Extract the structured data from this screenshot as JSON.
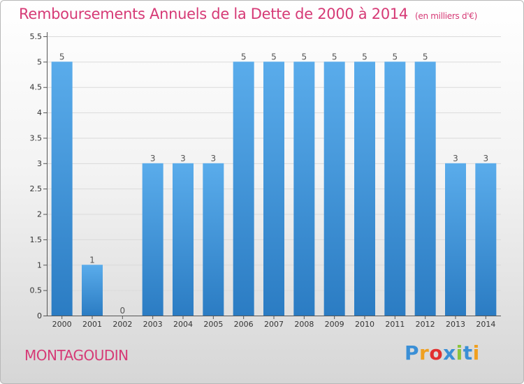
{
  "title": "Remboursements Annuels de la Dette de 2000 à 2014",
  "unit_note": "(en milliers d'€)",
  "place": "MONTAGOUDIN",
  "logo": {
    "text": "Proxiti",
    "letter_colors": [
      "#3a8fd6",
      "#f0a020",
      "#e23030",
      "#3a8fd6",
      "#8bc43c",
      "#3a8fd6",
      "#f0a020"
    ]
  },
  "colors": {
    "accent": "#d63a76",
    "bar_light": "#5aaceb",
    "bar_dark": "#2b7cc3"
  },
  "chart_data": {
    "type": "bar",
    "categories": [
      "2000",
      "2001",
      "2002",
      "2003",
      "2004",
      "2005",
      "2006",
      "2007",
      "2008",
      "2009",
      "2010",
      "2011",
      "2012",
      "2013",
      "2014"
    ],
    "values": [
      5,
      1,
      0,
      3,
      3,
      3,
      5,
      5,
      5,
      5,
      5,
      5,
      5,
      3,
      3
    ],
    "data_labels": [
      "5",
      "1",
      "0",
      "3",
      "3",
      "3",
      "5",
      "5",
      "5",
      "5",
      "5",
      "5",
      "5",
      "3",
      "3"
    ],
    "ylim": [
      0,
      5.5
    ],
    "yticks": [
      0,
      0.5,
      1,
      1.5,
      2,
      2.5,
      3,
      3.5,
      4,
      4.5,
      5,
      5.5
    ],
    "ytick_labels": [
      "0",
      "0.5",
      "1",
      "1.5",
      "2",
      "2.5",
      "3",
      "3.5",
      "4",
      "4.5",
      "5",
      "5.5"
    ],
    "grid": true,
    "title": "Remboursements Annuels de la Dette de 2000 à 2014",
    "xlabel": "",
    "ylabel": ""
  }
}
